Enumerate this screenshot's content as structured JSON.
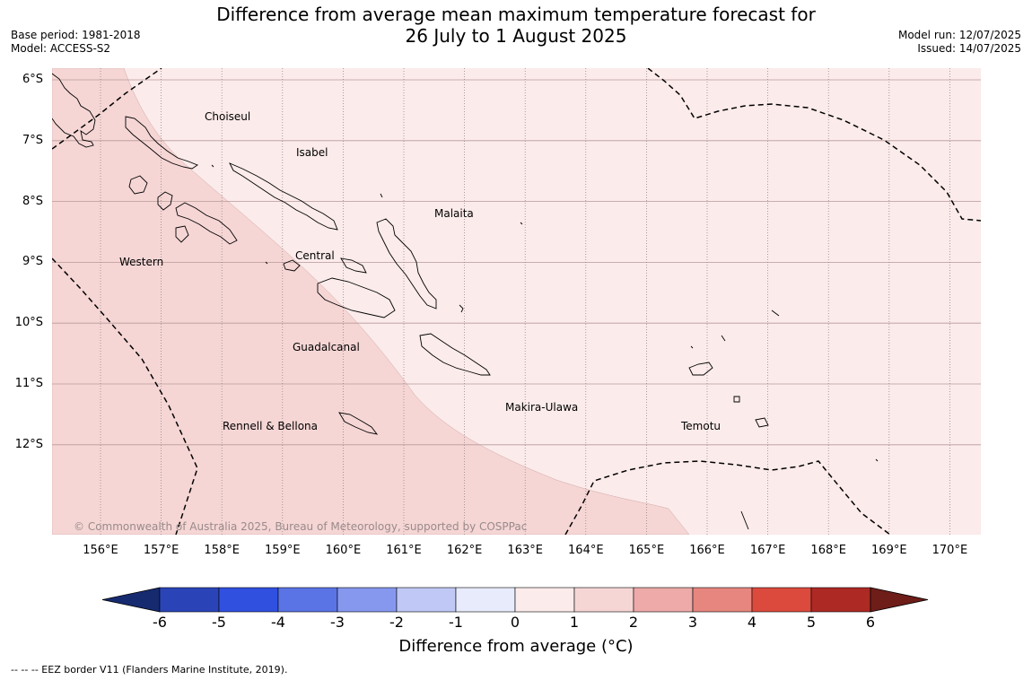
{
  "header": {
    "title_line1": "Difference from average mean maximum temperature forecast for",
    "title_line2": "26 July to 1 August 2025",
    "base_period": "Base period: 1981-2018",
    "model": "Model: ACCESS-S2",
    "model_run": "Model run: 12/07/2025",
    "issued": "Issued: 14/07/2025"
  },
  "map": {
    "colors": {
      "band_0_1": "#fbebea",
      "band_1_2": "#f5d6d5",
      "coast": "#000000",
      "eez": "#000000",
      "grid_lat": "#b89a9a",
      "grid_lon": "#8b7a7a"
    },
    "lat_labels": [
      "6°S",
      "7°S",
      "8°S",
      "9°S",
      "10°S",
      "11°S",
      "12°S"
    ],
    "lon_labels": [
      "156°E",
      "157°E",
      "158°E",
      "159°E",
      "160°E",
      "161°E",
      "162°E",
      "163°E",
      "164°E",
      "165°E",
      "166°E",
      "167°E",
      "168°E",
      "169°E",
      "170°E"
    ],
    "provinces": [
      "Choiseul",
      "Isabel",
      "Malaita",
      "Western",
      "Central",
      "Guadalcanal",
      "Makira-Ulawa",
      "Rennell & Bellona",
      "Temotu"
    ],
    "copyright": "© Commonwealth of Australia 2025, Bureau of Meteorology, supported by COSPPac"
  },
  "colorbar": {
    "ticks": [
      "-6",
      "-5",
      "-4",
      "-3",
      "-2",
      "-1",
      "0",
      "1",
      "2",
      "3",
      "4",
      "5",
      "6"
    ],
    "colors": [
      "#162a70",
      "#2a44b8",
      "#3050e0",
      "#5a74e6",
      "#8698ee",
      "#c0c8f5",
      "#e8ebfb",
      "#fbebea",
      "#f5d6d5",
      "#edaaa8",
      "#e6867f",
      "#dc4a3e",
      "#ad2a24",
      "#6e1d19"
    ],
    "label": "Difference from average (°C)"
  },
  "footer": {
    "eez_note": "--  --  -- EEZ border V11 (Flanders Marine Institute, 2019)."
  }
}
